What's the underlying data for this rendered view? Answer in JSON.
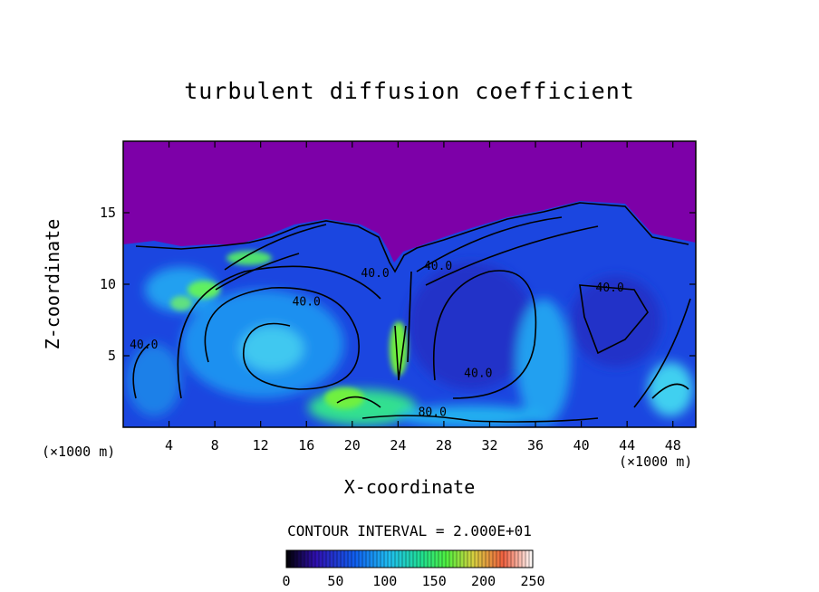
{
  "chart_data": {
    "type": "heatmap",
    "title": "turbulent diffusion coefficient",
    "xlabel": "X-coordinate",
    "ylabel": "Z-coordinate",
    "x_unit": "(×1000 m)",
    "x_unit_right": "(×1000 m)",
    "xlim": [
      0,
      50
    ],
    "ylim": [
      0,
      20
    ],
    "xticks": [
      4,
      8,
      12,
      16,
      20,
      24,
      28,
      32,
      36,
      40,
      44,
      48
    ],
    "yticks": [
      5,
      10,
      15
    ],
    "contour_interval_text": "CONTOUR INTERVAL = 2.000E+01",
    "colorbar": {
      "range": [
        0,
        250
      ],
      "ticks": [
        0,
        50,
        100,
        150,
        200,
        250
      ]
    },
    "contour_labels": [
      {
        "text": "40.0",
        "x": 1.8,
        "y": 5.5
      },
      {
        "text": "40.0",
        "x": 16.0,
        "y": 8.5
      },
      {
        "text": "40.0",
        "x": 22.0,
        "y": 10.5
      },
      {
        "text": "40.0",
        "x": 27.5,
        "y": 11.0
      },
      {
        "text": "40.0",
        "x": 31.0,
        "y": 3.5
      },
      {
        "text": "40.0",
        "x": 42.5,
        "y": 9.5
      },
      {
        "text": "80.0",
        "x": 27.0,
        "y": 0.8
      }
    ],
    "colors": {
      "background_field": "#7d00a8",
      "low": "#2a10c8",
      "mid": "#1ea0f0",
      "high": "#30e050"
    }
  }
}
